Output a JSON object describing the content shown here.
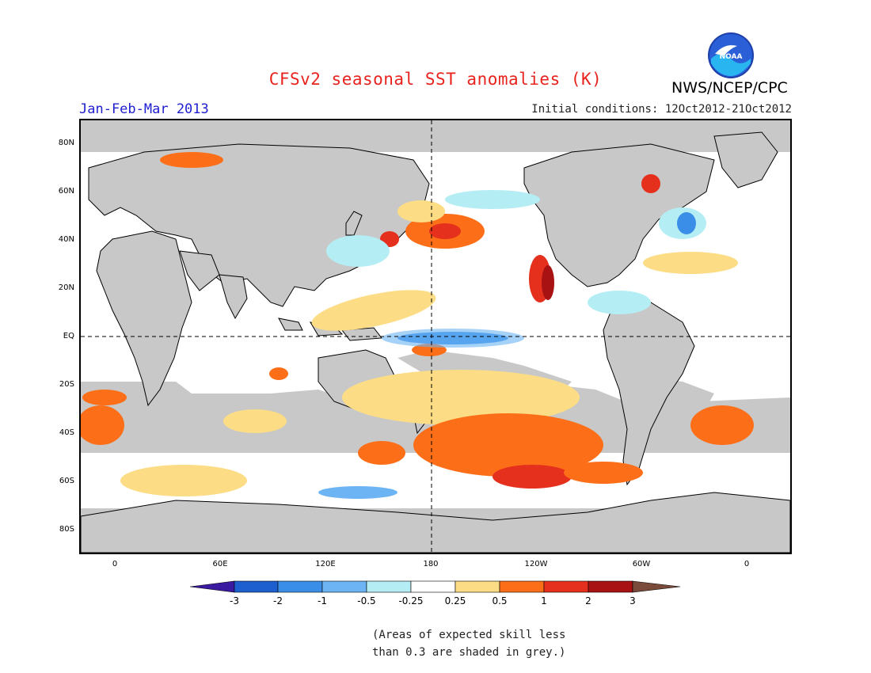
{
  "header": {
    "title": "CFSv2 seasonal SST anomalies (K)",
    "period": "Jan-Feb-Mar 2013",
    "initial_conditions": "Initial conditions: 12Oct2012-21Oct2012",
    "agency": "NWS/NCEP/CPC",
    "logo_text": "NOAA"
  },
  "map": {
    "projection": "cylindrical",
    "lat_labels": [
      "80N",
      "60N",
      "40N",
      "20N",
      "EQ",
      "20S",
      "40S",
      "60S",
      "80S"
    ],
    "lon_labels": [
      "0",
      "60E",
      "120E",
      "180",
      "120W",
      "60W",
      "0"
    ],
    "land_color": "#c8c8c8",
    "skill_mask_color": "#c8c8c8",
    "reference_lines": [
      "equator dashed",
      "180 meridian dashed"
    ]
  },
  "colorbar": {
    "labels": [
      "-3",
      "-2",
      "-1",
      "-0.5",
      "-0.25",
      "0.25",
      "0.5",
      "1",
      "2",
      "3"
    ],
    "colors": [
      "#3a1aa0",
      "#1e5fd0",
      "#3a8ee8",
      "#6cb4f4",
      "#b4eef4",
      "#ffffff",
      "#fcdc84",
      "#fc6f18",
      "#e4301c",
      "#a81212",
      "#7a4a3a"
    ]
  },
  "note": {
    "line1": "(Areas of expected skill less",
    "line2": "than 0.3 are shaded in grey.)"
  }
}
